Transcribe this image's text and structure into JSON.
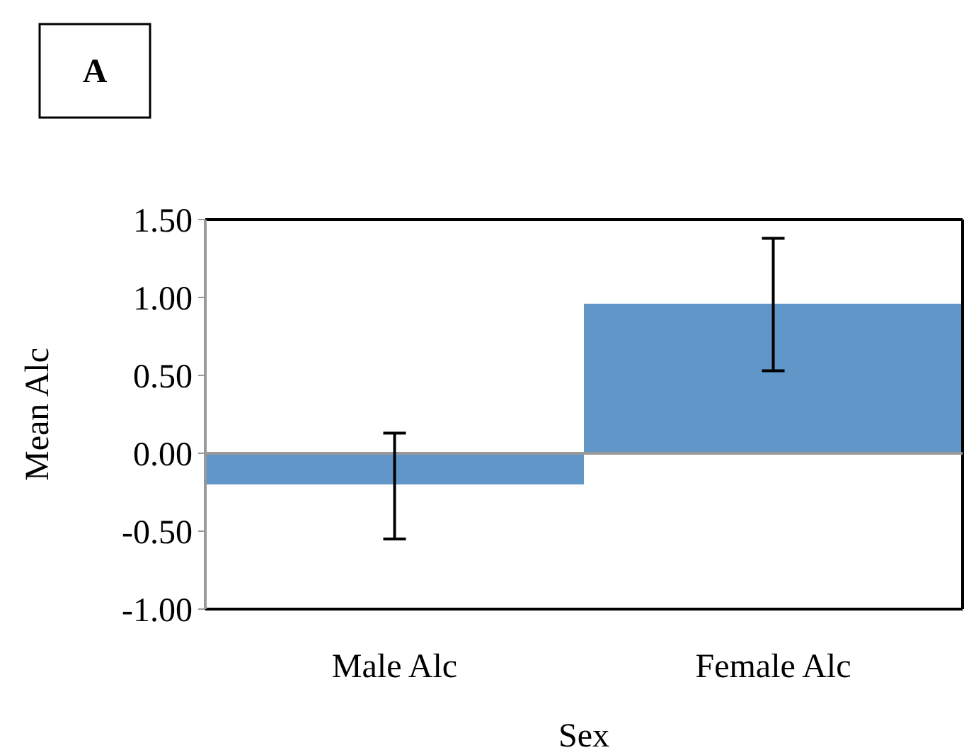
{
  "chart_data": {
    "type": "bar",
    "title": "A",
    "xlabel": "Sex",
    "ylabel": "Mean Alc",
    "categories": [
      "Male Alc",
      "Female Alc"
    ],
    "values": [
      -0.2,
      0.96
    ],
    "color": "#6096c8",
    "errors": [
      [
        -0.55,
        0.13
      ],
      [
        0.53,
        1.38
      ]
    ],
    "ylim": [
      -1.0,
      1.5
    ],
    "yticks": [
      {
        "value": -1,
        "label": "-1.00"
      },
      {
        "value": -0.5,
        "label": "-0.50"
      },
      {
        "value": 0,
        "label": "0.00"
      },
      {
        "value": 0.5,
        "label": "0.50"
      },
      {
        "value": 1,
        "label": "1.00"
      },
      {
        "value": 1.5,
        "label": "1.50"
      }
    ],
    "data_labels": false
  }
}
